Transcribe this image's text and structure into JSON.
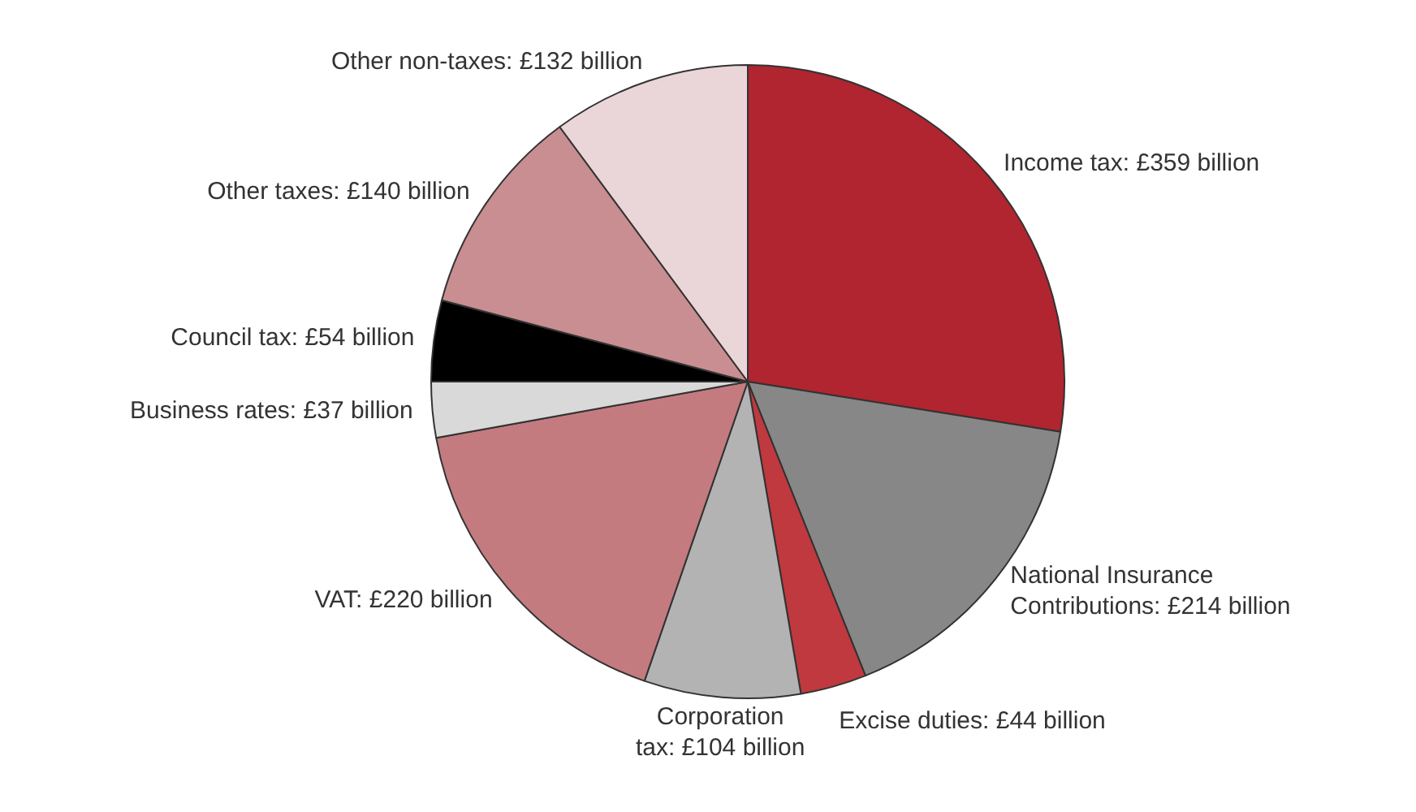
{
  "chart_data": {
    "type": "pie",
    "categories": [
      "Income tax: £359 billion",
      "National Insurance Contributions: £214 billion",
      "Excise duties: £44 billion",
      "Corporation tax: £104 billion",
      "VAT: £220 billion",
      "Business rates: £37 billion",
      "Council tax: £54 billion",
      "Other taxes: £140 billion",
      "Other non-taxes: £132 billion"
    ],
    "values": [
      359,
      214,
      44,
      104,
      220,
      37,
      54,
      140,
      132
    ],
    "colors": [
      "#b0252f",
      "#878787",
      "#c0393e",
      "#b3b3b3",
      "#c47b7f",
      "#d9d9d9",
      "#000000",
      "#c98e91",
      "#ead6d8"
    ],
    "legend": false
  }
}
